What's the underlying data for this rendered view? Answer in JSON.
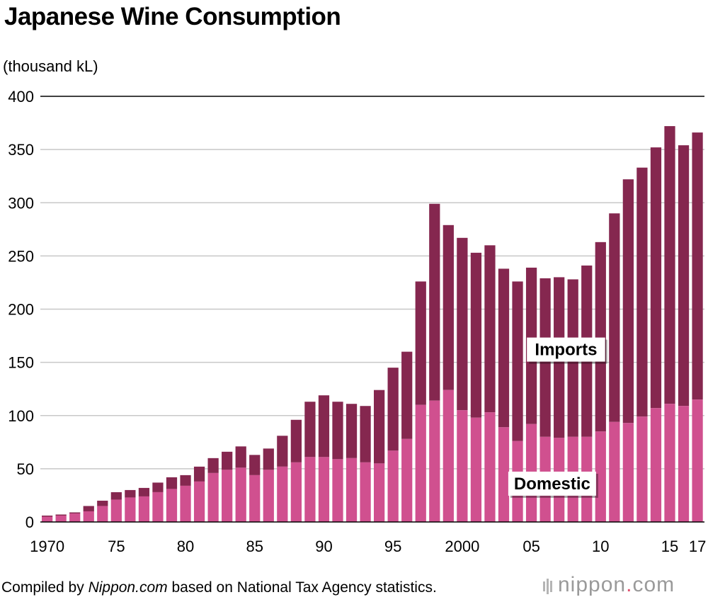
{
  "title": "Japanese Wine Consumption",
  "unit_label": "(thousand kL)",
  "footer": {
    "prefix": "Compiled by ",
    "source_italic": "Nippon.com",
    "suffix": " based on National Tax Agency statistics."
  },
  "brand": {
    "name": "nippon",
    "dot": ".",
    "tld": "com"
  },
  "colors": {
    "domestic": "#d0508f",
    "imports": "#85274f",
    "grid": "#c8c8c8",
    "axis": "#000000"
  },
  "chart_data": {
    "type": "bar",
    "stacked": true,
    "ylim": [
      0,
      400
    ],
    "y_ticks": [
      0,
      50,
      100,
      150,
      200,
      250,
      300,
      350,
      400
    ],
    "x_tick_labels": [
      {
        "year": 1970,
        "label": "1970"
      },
      {
        "year": 1975,
        "label": "75"
      },
      {
        "year": 1980,
        "label": "80"
      },
      {
        "year": 1985,
        "label": "85"
      },
      {
        "year": 1990,
        "label": "90"
      },
      {
        "year": 1995,
        "label": "95"
      },
      {
        "year": 2000,
        "label": "2000"
      },
      {
        "year": 2005,
        "label": "05"
      },
      {
        "year": 2010,
        "label": "10"
      },
      {
        "year": 2015,
        "label": "15"
      },
      {
        "year": 2017,
        "label": "17"
      }
    ],
    "grid": true,
    "x": [
      1970,
      1971,
      1972,
      1973,
      1974,
      1975,
      1976,
      1977,
      1978,
      1979,
      1980,
      1981,
      1982,
      1983,
      1984,
      1985,
      1986,
      1987,
      1988,
      1989,
      1990,
      1991,
      1992,
      1993,
      1994,
      1995,
      1996,
      1997,
      1998,
      1999,
      2000,
      2001,
      2002,
      2003,
      2004,
      2005,
      2006,
      2007,
      2008,
      2009,
      2010,
      2011,
      2012,
      2013,
      2014,
      2015,
      2016,
      2017
    ],
    "series": [
      {
        "name": "Domestic",
        "values": [
          5,
          6,
          8,
          10,
          15,
          21,
          23,
          24,
          28,
          31,
          34,
          38,
          46,
          49,
          51,
          44,
          49,
          52,
          56,
          61,
          61,
          59,
          60,
          56,
          55,
          67,
          78,
          110,
          114,
          124,
          105,
          98,
          103,
          89,
          76,
          92,
          80,
          79,
          80,
          80,
          85,
          94,
          93,
          99,
          107,
          111,
          109,
          115
        ]
      },
      {
        "name": "Imports",
        "values": [
          1,
          1,
          1,
          5,
          5,
          7,
          7,
          8,
          9,
          11,
          10,
          14,
          14,
          17,
          20,
          19,
          20,
          29,
          40,
          52,
          58,
          54,
          51,
          53,
          69,
          78,
          82,
          116,
          185,
          155,
          162,
          155,
          157,
          149,
          150,
          147,
          149,
          151,
          148,
          161,
          178,
          196,
          229,
          234,
          245,
          261,
          245,
          251
        ]
      }
    ]
  }
}
